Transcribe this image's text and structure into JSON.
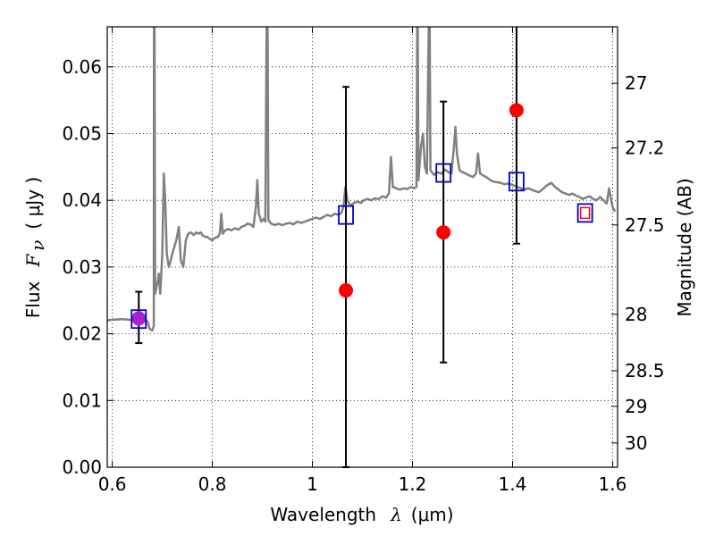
{
  "chart_data": {
    "type": "scatter",
    "title": "",
    "xlabel": {
      "prefix": "Wavelength",
      "symbol": "λ",
      "unit": "(μm)"
    },
    "ylabel": {
      "prefix": "Flux",
      "symbol": "F",
      "subscript": "ν",
      "unit": "( μJy )"
    },
    "ylabel_right": "Magnitude (AB)",
    "xlim": [
      0.59,
      1.61
    ],
    "ylim": [
      0.0,
      0.066
    ],
    "grid": true,
    "grid_style": "dotted",
    "x_ticks": [
      0.6,
      0.8,
      1.0,
      1.2,
      1.4,
      1.6
    ],
    "x_tick_labels": [
      "0.6",
      "0.8",
      "1",
      "1.2",
      "1.4",
      "1.6"
    ],
    "y_ticks": [
      0.0,
      0.01,
      0.02,
      0.03,
      0.04,
      0.05,
      0.06
    ],
    "y_tick_labels": [
      "0.00",
      "0.01",
      "0.02",
      "0.03",
      "0.04",
      "0.05",
      "0.06"
    ],
    "right_ticks": [
      {
        "mag": 27,
        "label": "27"
      },
      {
        "mag": 27.2,
        "label": "27.2"
      },
      {
        "mag": 27.5,
        "label": "27.5"
      },
      {
        "mag": 28,
        "label": "28"
      },
      {
        "mag": 28.5,
        "label": "28.5"
      },
      {
        "mag": 29,
        "label": "29"
      },
      {
        "mag": 30,
        "label": "30"
      }
    ],
    "colors": {
      "spectrum": "#808080",
      "observed": "#ff0000",
      "model_box": "#0000cc",
      "errorbar": "#000000",
      "magenta": "#aa22cc",
      "grid": "#000000"
    },
    "spectrum": [
      [
        0.59,
        0.022
      ],
      [
        0.6,
        0.0221
      ],
      [
        0.62,
        0.0222
      ],
      [
        0.635,
        0.0221
      ],
      [
        0.645,
        0.022
      ],
      [
        0.655,
        0.0222
      ],
      [
        0.665,
        0.0222
      ],
      [
        0.67,
        0.0219
      ],
      [
        0.675,
        0.0207
      ],
      [
        0.68,
        0.0205
      ],
      [
        0.683,
        0.0212
      ],
      [
        0.6835,
        0.066
      ],
      [
        0.6845,
        0.066
      ],
      [
        0.6855,
        0.026
      ],
      [
        0.69,
        0.0275
      ],
      [
        0.693,
        0.029
      ],
      [
        0.696,
        0.026
      ],
      [
        0.7,
        0.032
      ],
      [
        0.703,
        0.044
      ],
      [
        0.706,
        0.04
      ],
      [
        0.709,
        0.032
      ],
      [
        0.713,
        0.03
      ],
      [
        0.717,
        0.031
      ],
      [
        0.72,
        0.032
      ],
      [
        0.724,
        0.033
      ],
      [
        0.728,
        0.034
      ],
      [
        0.733,
        0.036
      ],
      [
        0.737,
        0.031
      ],
      [
        0.742,
        0.03
      ],
      [
        0.747,
        0.034
      ],
      [
        0.752,
        0.035
      ],
      [
        0.757,
        0.0352
      ],
      [
        0.763,
        0.0348
      ],
      [
        0.768,
        0.0352
      ],
      [
        0.772,
        0.035
      ],
      [
        0.777,
        0.0352
      ],
      [
        0.78,
        0.0348
      ],
      [
        0.786,
        0.0345
      ],
      [
        0.79,
        0.0345
      ],
      [
        0.795,
        0.0342
      ],
      [
        0.8,
        0.034
      ],
      [
        0.806,
        0.0344
      ],
      [
        0.811,
        0.0345
      ],
      [
        0.815,
        0.035
      ],
      [
        0.818,
        0.038
      ],
      [
        0.821,
        0.035
      ],
      [
        0.826,
        0.0355
      ],
      [
        0.832,
        0.0357
      ],
      [
        0.838,
        0.0355
      ],
      [
        0.845,
        0.0358
      ],
      [
        0.852,
        0.0356
      ],
      [
        0.858,
        0.036
      ],
      [
        0.865,
        0.0362
      ],
      [
        0.87,
        0.0365
      ],
      [
        0.876,
        0.0364
      ],
      [
        0.882,
        0.036
      ],
      [
        0.887,
        0.039
      ],
      [
        0.89,
        0.043
      ],
      [
        0.893,
        0.038
      ],
      [
        0.898,
        0.0368
      ],
      [
        0.902,
        0.0372
      ],
      [
        0.906,
        0.0368
      ],
      [
        0.9085,
        0.066
      ],
      [
        0.9105,
        0.066
      ],
      [
        0.912,
        0.037
      ],
      [
        0.918,
        0.0365
      ],
      [
        0.925,
        0.0363
      ],
      [
        0.932,
        0.0365
      ],
      [
        0.94,
        0.0363
      ],
      [
        0.947,
        0.0365
      ],
      [
        0.955,
        0.0366
      ],
      [
        0.962,
        0.0364
      ],
      [
        0.97,
        0.0368
      ],
      [
        0.978,
        0.0366
      ],
      [
        0.985,
        0.0368
      ],
      [
        0.992,
        0.037
      ],
      [
        1.0,
        0.0372
      ],
      [
        1.007,
        0.0374
      ],
      [
        1.015,
        0.0372
      ],
      [
        1.022,
        0.0375
      ],
      [
        1.03,
        0.0378
      ],
      [
        1.037,
        0.0376
      ],
      [
        1.045,
        0.038
      ],
      [
        1.052,
        0.0378
      ],
      [
        1.058,
        0.0381
      ],
      [
        1.062,
        0.039
      ],
      [
        1.066,
        0.042
      ],
      [
        1.07,
        0.04
      ],
      [
        1.076,
        0.0392
      ],
      [
        1.083,
        0.0396
      ],
      [
        1.09,
        0.0398
      ],
      [
        1.097,
        0.0396
      ],
      [
        1.103,
        0.04
      ],
      [
        1.11,
        0.0402
      ],
      [
        1.118,
        0.04
      ],
      [
        1.125,
        0.0403
      ],
      [
        1.133,
        0.0402
      ],
      [
        1.14,
        0.0406
      ],
      [
        1.147,
        0.0404
      ],
      [
        1.153,
        0.041
      ],
      [
        1.157,
        0.0465
      ],
      [
        1.161,
        0.042
      ],
      [
        1.168,
        0.0418
      ],
      [
        1.175,
        0.0416
      ],
      [
        1.182,
        0.0418
      ],
      [
        1.19,
        0.0417
      ],
      [
        1.197,
        0.042
      ],
      [
        1.203,
        0.0418
      ],
      [
        1.208,
        0.042
      ],
      [
        1.2095,
        0.066
      ],
      [
        1.2105,
        0.066
      ],
      [
        1.212,
        0.043
      ],
      [
        1.217,
        0.048
      ],
      [
        1.221,
        0.05
      ],
      [
        1.225,
        0.045
      ],
      [
        1.229,
        0.044
      ],
      [
        1.2325,
        0.066
      ],
      [
        1.2345,
        0.066
      ],
      [
        1.236,
        0.0445
      ],
      [
        1.243,
        0.0438
      ],
      [
        1.25,
        0.0442
      ],
      [
        1.258,
        0.044
      ],
      [
        1.265,
        0.0446
      ],
      [
        1.272,
        0.0442
      ],
      [
        1.278,
        0.044
      ],
      [
        1.283,
        0.048
      ],
      [
        1.286,
        0.051
      ],
      [
        1.289,
        0.047
      ],
      [
        1.294,
        0.0445
      ],
      [
        1.3,
        0.0442
      ],
      [
        1.307,
        0.044
      ],
      [
        1.314,
        0.0437
      ],
      [
        1.321,
        0.0435
      ],
      [
        1.327,
        0.044
      ],
      [
        1.331,
        0.047
      ],
      [
        1.335,
        0.044
      ],
      [
        1.342,
        0.0437
      ],
      [
        1.349,
        0.0434
      ],
      [
        1.356,
        0.043
      ],
      [
        1.362,
        0.0428
      ],
      [
        1.37,
        0.0427
      ],
      [
        1.377,
        0.0426
      ],
      [
        1.384,
        0.0424
      ],
      [
        1.391,
        0.0425
      ],
      [
        1.397,
        0.0424
      ],
      [
        1.403,
        0.0422
      ],
      [
        1.41,
        0.042
      ],
      [
        1.417,
        0.0418
      ],
      [
        1.424,
        0.0416
      ],
      [
        1.431,
        0.0418
      ],
      [
        1.438,
        0.0416
      ],
      [
        1.445,
        0.0414
      ],
      [
        1.452,
        0.0412
      ],
      [
        1.458,
        0.0415
      ],
      [
        1.465,
        0.042
      ],
      [
        1.472,
        0.0424
      ],
      [
        1.478,
        0.0426
      ],
      [
        1.485,
        0.042
      ],
      [
        1.492,
        0.0416
      ],
      [
        1.499,
        0.0412
      ],
      [
        1.506,
        0.041
      ],
      [
        1.513,
        0.0408
      ],
      [
        1.52,
        0.041
      ],
      [
        1.527,
        0.0407
      ],
      [
        1.534,
        0.0405
      ],
      [
        1.54,
        0.0402
      ],
      [
        1.547,
        0.0404
      ],
      [
        1.554,
        0.0406
      ],
      [
        1.561,
        0.0402
      ],
      [
        1.568,
        0.04
      ],
      [
        1.575,
        0.0405
      ],
      [
        1.582,
        0.04
      ],
      [
        1.588,
        0.0395
      ],
      [
        1.593,
        0.0418
      ],
      [
        1.596,
        0.0405
      ],
      [
        1.6,
        0.039
      ],
      [
        1.605,
        0.0383
      ]
    ],
    "observed": [
      {
        "x": 0.653,
        "y": 0.0223,
        "yerr_low": 0.0186,
        "yerr_high": 0.0263,
        "color": "magenta"
      },
      {
        "x": 1.067,
        "y": 0.0265,
        "yerr_low": 0.0,
        "yerr_high": 0.057
      },
      {
        "x": 1.262,
        "y": 0.0352,
        "yerr_low": 0.0157,
        "yerr_high": 0.0548
      },
      {
        "x": 1.408,
        "y": 0.0535,
        "yerr_low": 0.0335,
        "yerr_high": 0.066
      }
    ],
    "model_boxes": [
      {
        "x": 0.653,
        "y": 0.0222
      },
      {
        "x": 1.067,
        "y": 0.0378
      },
      {
        "x": 1.262,
        "y": 0.0441
      },
      {
        "x": 1.408,
        "y": 0.0428
      }
    ],
    "last_point": {
      "x": 1.545,
      "y": 0.0381
    }
  }
}
